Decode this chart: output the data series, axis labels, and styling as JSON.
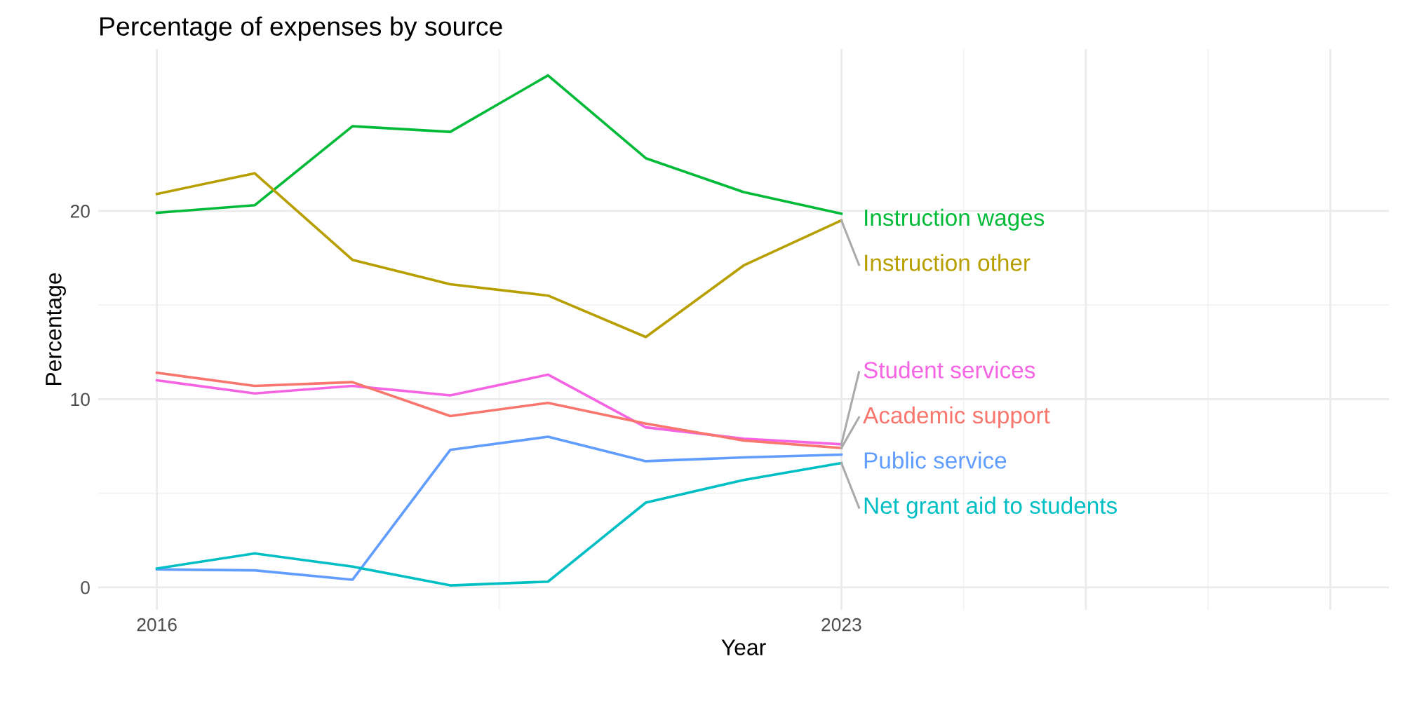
{
  "chart_data": {
    "type": "line",
    "title": "Percentage of expenses by source",
    "xlabel": "Year",
    "ylabel": "Percentage",
    "x": [
      2016,
      2017,
      2018,
      2019,
      2020,
      2021,
      2022,
      2023
    ],
    "series": [
      {
        "name": "Instruction wages",
        "color": "#00ba38",
        "values": [
          19.9,
          20.3,
          24.5,
          24.2,
          27.2,
          22.8,
          21.0,
          19.85
        ]
      },
      {
        "name": "Instruction other",
        "color": "#b79f00",
        "values": [
          20.9,
          22.0,
          17.4,
          16.1,
          15.5,
          13.3,
          17.1,
          19.5
        ]
      },
      {
        "name": "Student services",
        "color": "#f564e3",
        "values": [
          11.0,
          10.3,
          10.7,
          10.2,
          11.3,
          8.5,
          7.9,
          7.6
        ]
      },
      {
        "name": "Academic support",
        "color": "#f8766d",
        "values": [
          11.4,
          10.7,
          10.9,
          9.1,
          9.8,
          8.7,
          7.8,
          7.4
        ]
      },
      {
        "name": "Public service",
        "color": "#619cff",
        "values": [
          0.95,
          0.9,
          0.4,
          7.3,
          8.0,
          6.7,
          6.9,
          7.05
        ]
      },
      {
        "name": "Net grant aid to students",
        "color": "#00bfc4",
        "values": [
          1.0,
          1.8,
          1.1,
          0.1,
          0.3,
          4.5,
          5.7,
          6.6
        ]
      }
    ],
    "xlim": [
      2015.4,
      2028.6
    ],
    "xticks": [
      2016,
      2023,
      {
        "value": 2025.5,
        "label": null
      },
      {
        "value": 2028,
        "label": null
      }
    ],
    "ylim": [
      -1.2,
      28.6
    ],
    "yticks": [
      0,
      10,
      20
    ],
    "grid": true,
    "legend": false,
    "marker": "none",
    "line_style": "solid"
  }
}
